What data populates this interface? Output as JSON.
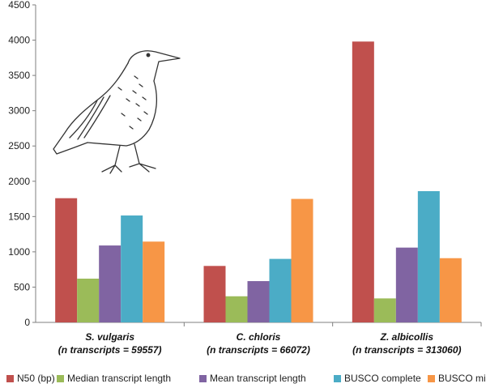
{
  "chart_data": {
    "type": "bar",
    "categories": [
      {
        "name": "S. vulgaris",
        "note": "(n transcripts = 59557)"
      },
      {
        "name": "C. chloris",
        "note": "(n transcripts = 66072)"
      },
      {
        "name": "Z. albicollis",
        "note": "(n transcripts = 313060)"
      }
    ],
    "series": [
      {
        "name": "N50 (bp)",
        "color": "#c0504d",
        "values": [
          1760,
          800,
          3980
        ]
      },
      {
        "name": "Median transcript length",
        "color": "#9bbb59",
        "values": [
          620,
          370,
          340
        ]
      },
      {
        "name": "Mean transcript length",
        "color": "#8064a2",
        "values": [
          1090,
          585,
          1060
        ]
      },
      {
        "name": "BUSCO complete",
        "color": "#4bacc6",
        "values": [
          1515,
          900,
          1860
        ]
      },
      {
        "name": "BUSCO missing",
        "color": "#f79646",
        "values": [
          1145,
          1750,
          910
        ]
      }
    ],
    "ylim": [
      0,
      4500
    ],
    "yticks": [
      "0",
      "500",
      "1000",
      "1500",
      "2000",
      "2500",
      "3000",
      "3500",
      "4000",
      "4500"
    ],
    "grid": false,
    "legend_position": "bottom"
  },
  "illustration": {
    "subject": "bird-drawing-icon"
  }
}
